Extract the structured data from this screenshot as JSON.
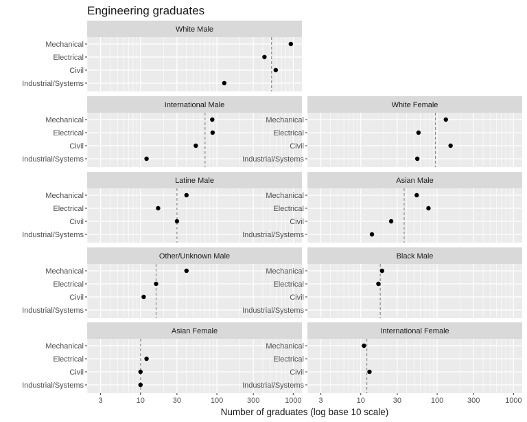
{
  "chart_data": {
    "type": "scatter",
    "title": "Engineering graduates",
    "xlabel": "Number of graduates (log base 10 scale)",
    "ylabel": "",
    "x_scale": "log10",
    "xlim": [
      2,
      1300
    ],
    "x_ticks": [
      3,
      10,
      30,
      100,
      300,
      1000
    ],
    "x_tick_labels": [
      "3",
      "10",
      "30",
      "100",
      "300",
      "1000"
    ],
    "categories": [
      "Mechanical",
      "Electrical",
      "Civil",
      "Industrial/Systems"
    ],
    "grid": true,
    "reference_line": "dashed vertical line per panel",
    "panels": [
      {
        "name": "White Male",
        "ref": 520,
        "values": [
          930,
          420,
          590,
          125
        ]
      },
      {
        "name": "International Male",
        "ref": 70,
        "values": [
          87,
          88,
          53,
          12
        ]
      },
      {
        "name": "White Female",
        "ref": 95,
        "values": [
          130,
          57,
          150,
          55
        ]
      },
      {
        "name": "Latine Male",
        "ref": 30,
        "values": [
          40,
          17,
          30,
          null
        ]
      },
      {
        "name": "Asian Male",
        "ref": 37,
        "values": [
          54,
          77,
          25,
          14
        ]
      },
      {
        "name": "Other/Unknown Male",
        "ref": 16,
        "values": [
          40,
          16,
          11,
          null
        ]
      },
      {
        "name": "Black Male",
        "ref": 18,
        "values": [
          19,
          17,
          null,
          null
        ]
      },
      {
        "name": "Asian Female",
        "ref": 10,
        "values": [
          null,
          12,
          10,
          10
        ]
      },
      {
        "name": "International Female",
        "ref": 12,
        "values": [
          11,
          null,
          13,
          null
        ]
      }
    ]
  }
}
